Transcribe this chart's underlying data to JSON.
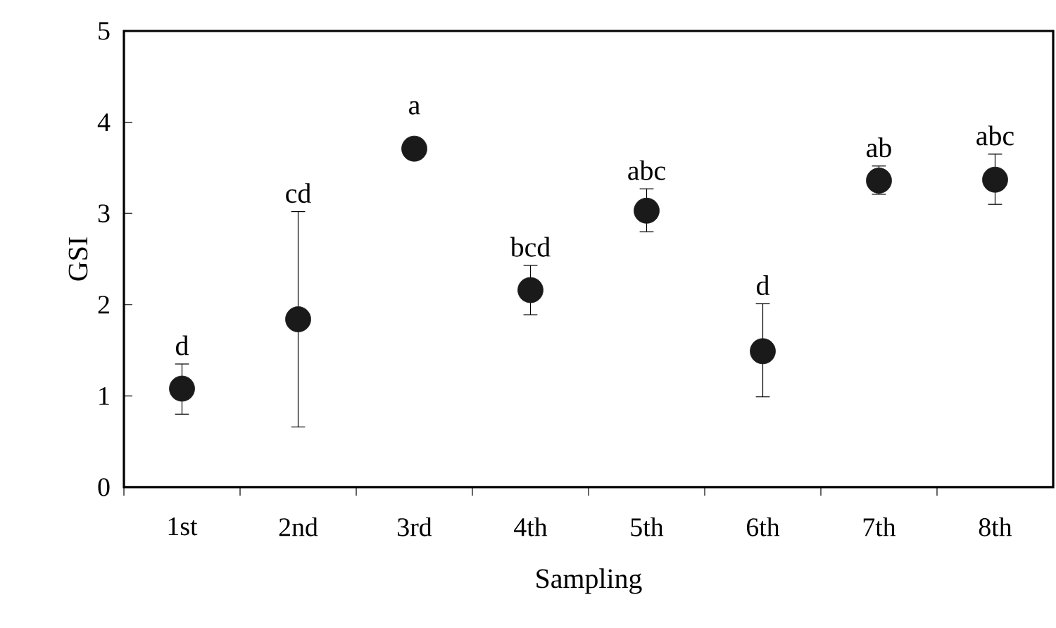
{
  "chart_data": {
    "type": "scatter",
    "xlabel": "Sampling",
    "ylabel": "GSI",
    "categories": [
      "1st",
      "2nd",
      "3rd",
      "4th",
      "5th",
      "6th",
      "7th",
      "8th"
    ],
    "values": [
      1.08,
      1.84,
      3.71,
      2.16,
      3.03,
      1.49,
      3.36,
      3.37
    ],
    "errors": [
      [
        0.8,
        1.35
      ],
      [
        0.66,
        3.02
      ],
      null,
      [
        1.89,
        2.43
      ],
      [
        2.8,
        3.27
      ],
      [
        0.99,
        2.01
      ],
      [
        3.21,
        3.52
      ],
      [
        3.1,
        3.65
      ]
    ],
    "color": "#1a1a1a",
    "marker": "circle",
    "ylim": [
      0,
      5
    ],
    "yticks": [
      0,
      1,
      2,
      3,
      4,
      5
    ],
    "annotations": [
      {
        "text": "d",
        "x": "1st",
        "y": 1.35
      },
      {
        "text": "cd",
        "x": "2nd",
        "y": 3.02
      },
      {
        "text": "a",
        "x": "3rd",
        "y": 3.71
      },
      {
        "text": "bcd",
        "x": "4th",
        "y": 2.43
      },
      {
        "text": "abc",
        "x": "5th",
        "y": 3.27
      },
      {
        "text": "d",
        "x": "6th",
        "y": 2.01
      },
      {
        "text": "ab",
        "x": "7th",
        "y": 3.52
      },
      {
        "text": "abc",
        "x": "8th",
        "y": 3.65
      }
    ]
  }
}
